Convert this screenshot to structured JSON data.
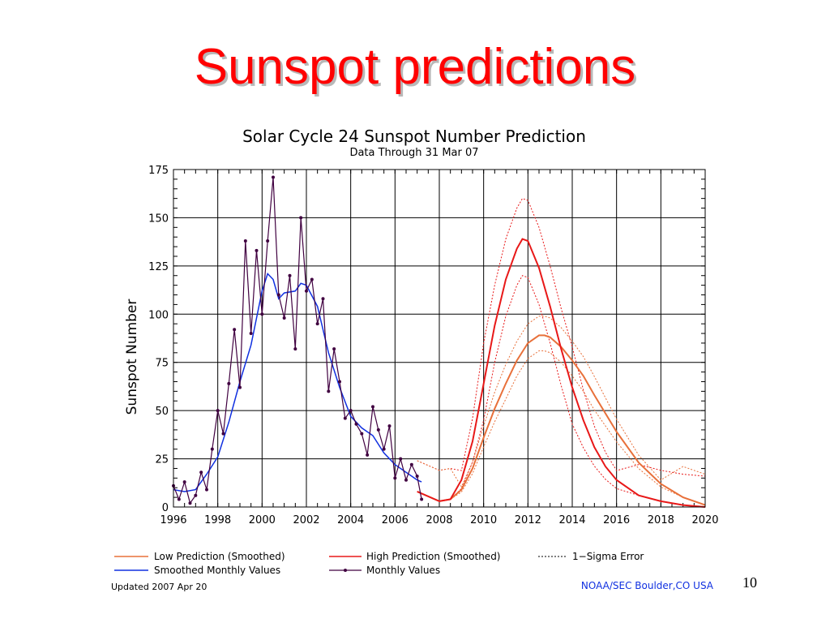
{
  "slide": {
    "title": "Sunspot predictions",
    "number": "10"
  },
  "chart_data": {
    "type": "line",
    "title": "Solar Cycle 24 Sunspot Number Prediction",
    "subtitle": "Data Through 31 Mar 07",
    "xlabel": "",
    "ylabel": "Sunspot Number",
    "xlim": [
      1996,
      2020
    ],
    "ylim": [
      0,
      175
    ],
    "xticks": [
      "1996",
      "1998",
      "2000",
      "2002",
      "2004",
      "2006",
      "2008",
      "2010",
      "2012",
      "2014",
      "2016",
      "2018",
      "2020"
    ],
    "yticks": [
      "0",
      "25",
      "50",
      "75",
      "100",
      "125",
      "150",
      "175"
    ],
    "grid": true,
    "footer_left": "Updated 2007 Apr 20",
    "footer_right": "NOAA/SEC Boulder,CO USA",
    "legend_items": {
      "low": "Low Prediction (Smoothed)",
      "high": "High Prediction (Smoothed)",
      "sigma": "1−Sigma Error",
      "smoothed": "Smoothed Monthly Values",
      "monthly": "Monthly Values"
    },
    "colors": {
      "low": "#e8703a",
      "high": "#e81818",
      "smoothed": "#1030e0",
      "monthly": "#400040"
    },
    "series": [
      {
        "name": "Monthly Values",
        "x": [
          1996.0,
          1996.25,
          1996.5,
          1996.75,
          1997.0,
          1997.25,
          1997.5,
          1997.75,
          1998.0,
          1998.25,
          1998.5,
          1998.75,
          1999.0,
          1999.25,
          1999.5,
          1999.75,
          2000.0,
          2000.25,
          2000.5,
          2000.75,
          2001.0,
          2001.25,
          2001.5,
          2001.75,
          2002.0,
          2002.25,
          2002.5,
          2002.75,
          2003.0,
          2003.25,
          2003.5,
          2003.75,
          2004.0,
          2004.25,
          2004.5,
          2004.75,
          2005.0,
          2005.25,
          2005.5,
          2005.75,
          2006.0,
          2006.25,
          2006.5,
          2006.75,
          2007.0,
          2007.2
        ],
        "y": [
          11,
          4,
          13,
          2,
          6,
          18,
          9,
          30,
          50,
          38,
          64,
          92,
          62,
          138,
          90,
          133,
          100,
          138,
          171,
          110,
          98,
          120,
          82,
          150,
          112,
          118,
          95,
          108,
          60,
          82,
          65,
          46,
          50,
          43,
          38,
          27,
          52,
          40,
          30,
          42,
          15,
          25,
          14,
          22,
          16,
          4
        ]
      },
      {
        "name": "Smoothed Monthly Values",
        "x": [
          1996.0,
          1996.5,
          1997.0,
          1997.5,
          1998.0,
          1998.5,
          1999.0,
          1999.5,
          2000.0,
          2000.25,
          2000.5,
          2000.75,
          2001.0,
          2001.5,
          2001.75,
          2002.0,
          2002.5,
          2003.0,
          2003.5,
          2004.0,
          2004.5,
          2005.0,
          2005.5,
          2006.0,
          2006.5,
          2007.0,
          2007.2
        ],
        "y": [
          9,
          8,
          9,
          17,
          26,
          44,
          65,
          84,
          112,
          121,
          118,
          108,
          111,
          112,
          116,
          115,
          104,
          80,
          62,
          47,
          41,
          37,
          28,
          22,
          18,
          14,
          13
        ]
      },
      {
        "name": "High Prediction (Smoothed)",
        "x": [
          2007.0,
          2008.0,
          2008.5,
          2009.0,
          2009.5,
          2010.0,
          2010.5,
          2011.0,
          2011.5,
          2011.75,
          2012.0,
          2012.5,
          2013.0,
          2013.5,
          2014.0,
          2014.5,
          2015.0,
          2015.5,
          2016.0,
          2017.0,
          2018.0,
          2019.0,
          2020.0
        ],
        "y": [
          8,
          3,
          4,
          14,
          34,
          64,
          94,
          118,
          134,
          139,
          138,
          124,
          104,
          82,
          62,
          45,
          31,
          21,
          14,
          6,
          3,
          1,
          0
        ]
      },
      {
        "name": "Low Prediction (Smoothed)",
        "x": [
          2007.0,
          2008.0,
          2008.5,
          2009.0,
          2009.5,
          2010.0,
          2010.5,
          2011.0,
          2011.5,
          2012.0,
          2012.5,
          2012.75,
          2013.0,
          2013.5,
          2014.0,
          2014.5,
          2015.0,
          2016.0,
          2017.0,
          2018.0,
          2019.0,
          2020.0
        ],
        "y": [
          8,
          3,
          4,
          9,
          20,
          36,
          51,
          64,
          76,
          85,
          89,
          89,
          88,
          83,
          76,
          68,
          58,
          39,
          23,
          12,
          5,
          1
        ]
      }
    ]
  }
}
